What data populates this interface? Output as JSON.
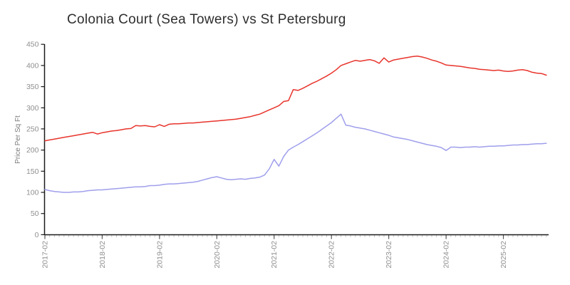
{
  "title": "Colonia Court (Sea Towers) vs St Petersburg",
  "chart_data": {
    "type": "line",
    "title": "Colonia Court (Sea Towers) vs St Petersburg",
    "xlabel": "",
    "ylabel": "Price Per Sq Ft",
    "ylim": [
      0,
      450
    ],
    "yticks": [
      0,
      50,
      100,
      150,
      200,
      250,
      300,
      350,
      400,
      450
    ],
    "x_major_tick_labels": [
      "2017-02",
      "2018-02",
      "2019-02",
      "2020-02",
      "2021-02",
      "2022-02",
      "2023-02",
      "2024-02",
      "2025-02"
    ],
    "grid": false,
    "legend_position": "none",
    "axis_color": "#1a1a1a",
    "tick_label_color": "#8f8f8f",
    "major_tick_color": "#555555",
    "minor_tick_color": "#c9c9c9",
    "months": [
      "2017-02",
      "2017-03",
      "2017-04",
      "2017-05",
      "2017-06",
      "2017-07",
      "2017-08",
      "2017-09",
      "2017-10",
      "2017-11",
      "2017-12",
      "2018-01",
      "2018-02",
      "2018-03",
      "2018-04",
      "2018-05",
      "2018-06",
      "2018-07",
      "2018-08",
      "2018-09",
      "2018-10",
      "2018-11",
      "2018-12",
      "2019-01",
      "2019-02",
      "2019-03",
      "2019-04",
      "2019-05",
      "2019-06",
      "2019-07",
      "2019-08",
      "2019-09",
      "2019-10",
      "2019-11",
      "2019-12",
      "2020-01",
      "2020-02",
      "2020-03",
      "2020-04",
      "2020-05",
      "2020-06",
      "2020-07",
      "2020-08",
      "2020-09",
      "2020-10",
      "2020-11",
      "2020-12",
      "2021-01",
      "2021-02",
      "2021-03",
      "2021-04",
      "2021-05",
      "2021-06",
      "2021-07",
      "2021-08",
      "2021-09",
      "2021-10",
      "2021-11",
      "2021-12",
      "2022-01",
      "2022-02",
      "2022-03",
      "2022-04",
      "2022-05",
      "2022-06",
      "2022-07",
      "2022-08",
      "2022-09",
      "2022-10",
      "2022-11",
      "2022-12",
      "2023-01",
      "2023-02",
      "2023-03",
      "2023-04",
      "2023-05",
      "2023-06",
      "2023-07",
      "2023-08",
      "2023-09",
      "2023-10",
      "2023-11",
      "2023-12",
      "2024-01",
      "2024-02",
      "2024-03",
      "2024-04",
      "2024-05",
      "2024-06",
      "2024-07",
      "2024-08",
      "2024-09",
      "2024-10",
      "2024-11",
      "2024-12",
      "2025-01",
      "2025-02",
      "2025-03",
      "2025-04",
      "2025-05",
      "2025-06",
      "2025-07",
      "2025-08",
      "2025-09",
      "2025-10",
      "2025-11"
    ],
    "series": [
      {
        "name": "Colonia Court (Sea Towers)",
        "color": "#e8342c",
        "values": [
          222,
          224,
          226,
          228,
          230,
          232,
          234,
          236,
          238,
          240,
          242,
          238,
          241,
          243,
          245,
          246,
          248,
          250,
          251,
          258,
          257,
          258,
          256,
          255,
          260,
          256,
          261,
          262,
          262,
          263,
          264,
          264,
          265,
          266,
          267,
          268,
          269,
          270,
          271,
          272,
          273,
          275,
          277,
          279,
          282,
          285,
          290,
          295,
          300,
          305,
          315,
          317,
          343,
          341,
          346,
          352,
          358,
          363,
          369,
          375,
          382,
          390,
          400,
          404,
          408,
          412,
          410,
          412,
          414,
          411,
          405,
          418,
          408,
          413,
          415,
          417,
          419,
          421,
          422,
          420,
          417,
          413,
          410,
          406,
          401,
          400,
          399,
          398,
          396,
          394,
          393,
          391,
          390,
          389,
          388,
          389,
          387,
          386,
          387,
          389,
          390,
          388,
          384,
          382,
          381,
          377
        ]
      },
      {
        "name": "St Petersburg",
        "color": "#9f9fec",
        "values": [
          107,
          104,
          102,
          101,
          100,
          100,
          101,
          101,
          102,
          104,
          105,
          106,
          106,
          107,
          108,
          109,
          110,
          111,
          112,
          113,
          113,
          114,
          116,
          116,
          117,
          119,
          120,
          120,
          121,
          122,
          123,
          124,
          126,
          129,
          132,
          135,
          137,
          134,
          131,
          130,
          131,
          132,
          131,
          133,
          134,
          136,
          141,
          156,
          178,
          162,
          185,
          200,
          207,
          213,
          220,
          227,
          234,
          241,
          249,
          257,
          265,
          275,
          285,
          259,
          257,
          254,
          252,
          250,
          247,
          244,
          241,
          238,
          235,
          231,
          229,
          227,
          225,
          222,
          219,
          216,
          213,
          211,
          209,
          206,
          199,
          207,
          207,
          206,
          207,
          207,
          208,
          207,
          208,
          209,
          209,
          210,
          210,
          211,
          212,
          212,
          213,
          213,
          214,
          215,
          215,
          216
        ]
      }
    ]
  }
}
